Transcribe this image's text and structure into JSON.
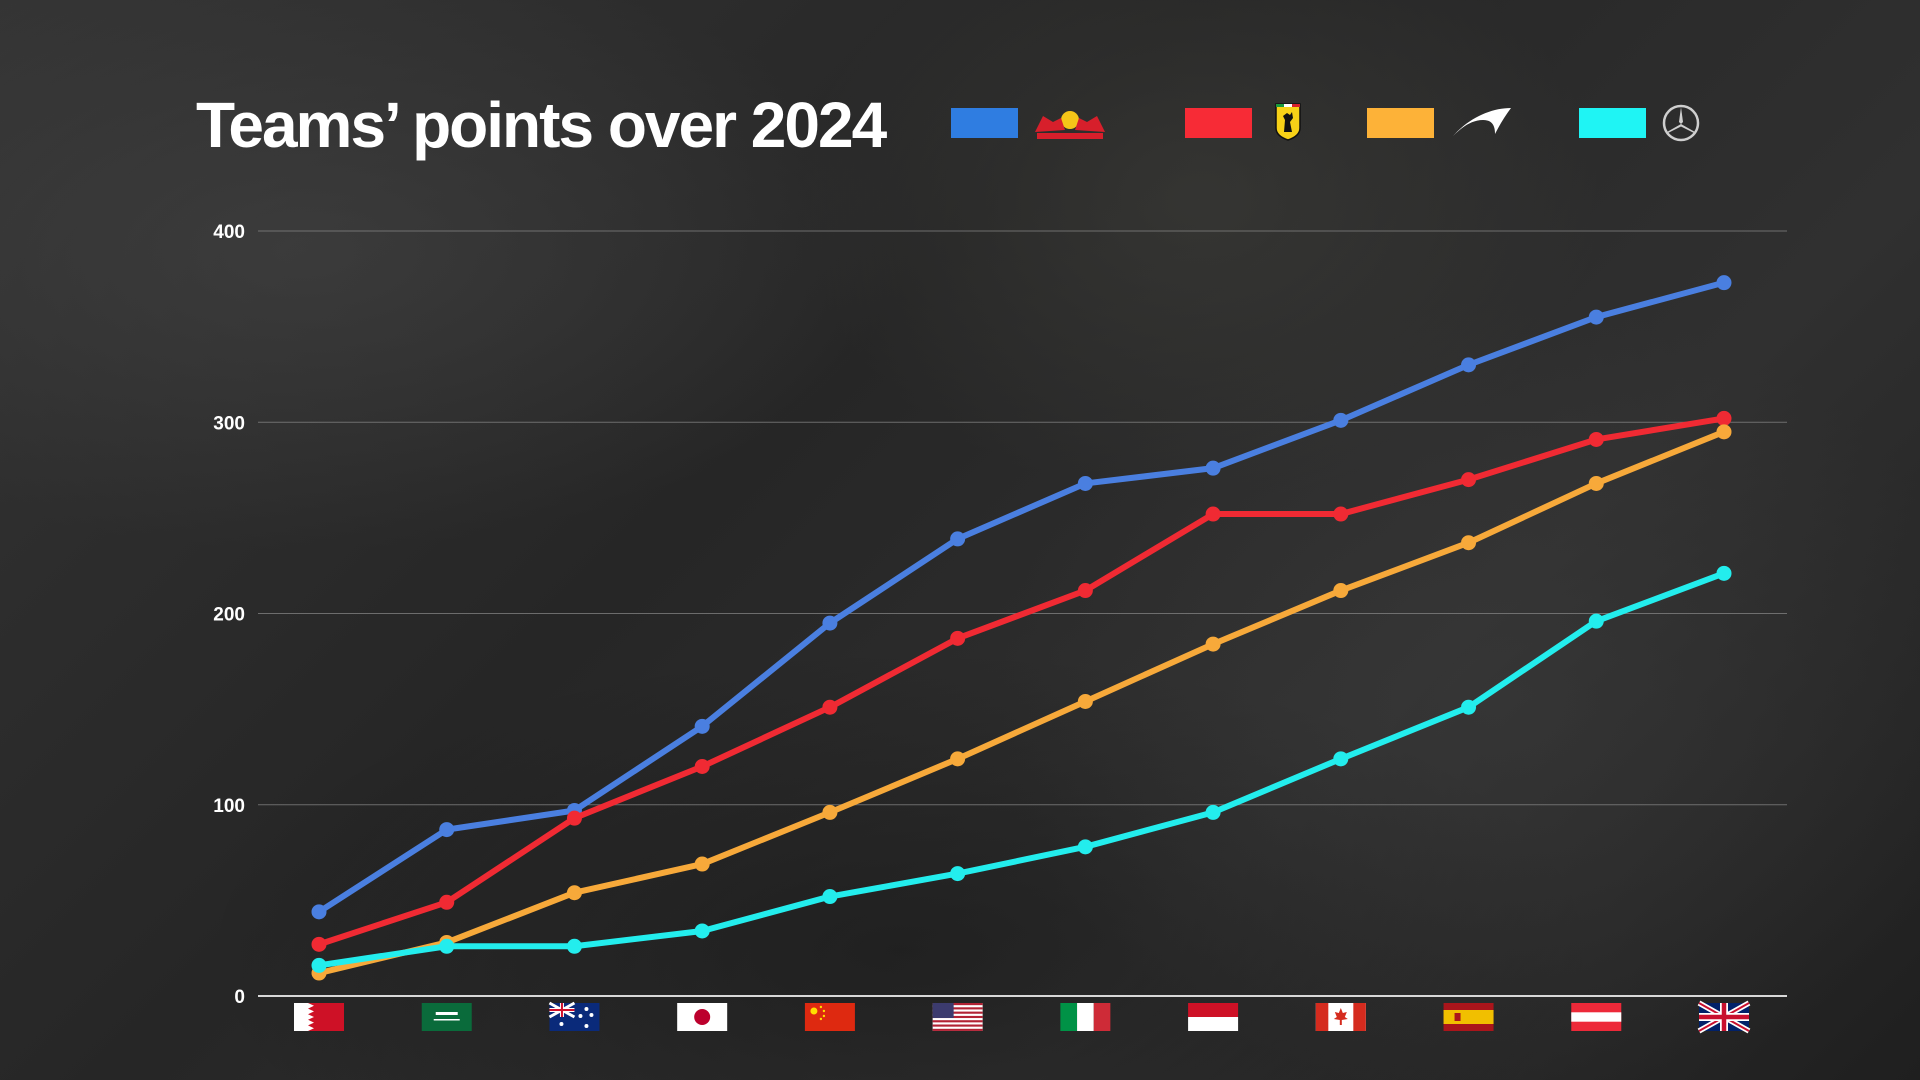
{
  "title": "Teams’ points over 2024",
  "colors": {
    "red_bull": "#4a7fe0",
    "ferrari": "#f02a33",
    "mclaren": "#f7a93a",
    "mercedes": "#23eded",
    "grid": "#8a8a8a",
    "axis": "#d8d8d8"
  },
  "legend": [
    {
      "swatch_color": "#2f7de1",
      "icon": "red-bull-logo-icon"
    },
    {
      "swatch_color": "#f72b36",
      "icon": "ferrari-logo-icon"
    },
    {
      "swatch_color": "#fdb238",
      "icon": "mclaren-logo-icon"
    },
    {
      "swatch_color": "#1ff4f4",
      "icon": "mercedes-logo-icon"
    }
  ],
  "chart_data": {
    "type": "line",
    "title": "Teams’ points over 2024",
    "xlabel": "",
    "ylabel": "",
    "ylim": [
      0,
      400
    ],
    "yticks": [
      "0",
      "100",
      "200",
      "300",
      "400"
    ],
    "grid": true,
    "legend_position": "top",
    "categories": [
      "bahrain-flag-icon",
      "saudi-arabia-flag-icon",
      "australia-flag-icon",
      "japan-flag-icon",
      "china-flag-icon",
      "usa-flag-icon",
      "italy-flag-icon",
      "monaco-flag-icon",
      "canada-flag-icon",
      "spain-flag-icon",
      "austria-flag-icon",
      "great-britain-flag-icon"
    ],
    "series": [
      {
        "icon": "red-bull-logo-icon",
        "color": "#4a7fe0",
        "values": [
          44,
          87,
          97,
          141,
          195,
          239,
          268,
          276,
          301,
          330,
          355,
          373
        ]
      },
      {
        "icon": "ferrari-logo-icon",
        "color": "#f02a33",
        "values": [
          27,
          49,
          93,
          120,
          151,
          187,
          212,
          252,
          252,
          270,
          291,
          302
        ]
      },
      {
        "icon": "mclaren-logo-icon",
        "color": "#f7a93a",
        "values": [
          12,
          28,
          54,
          69,
          96,
          124,
          154,
          184,
          212,
          237,
          268,
          295
        ]
      },
      {
        "icon": "mercedes-logo-icon",
        "color": "#23eded",
        "values": [
          16,
          26,
          26,
          34,
          52,
          64,
          78,
          96,
          124,
          151,
          196,
          221
        ]
      }
    ]
  }
}
